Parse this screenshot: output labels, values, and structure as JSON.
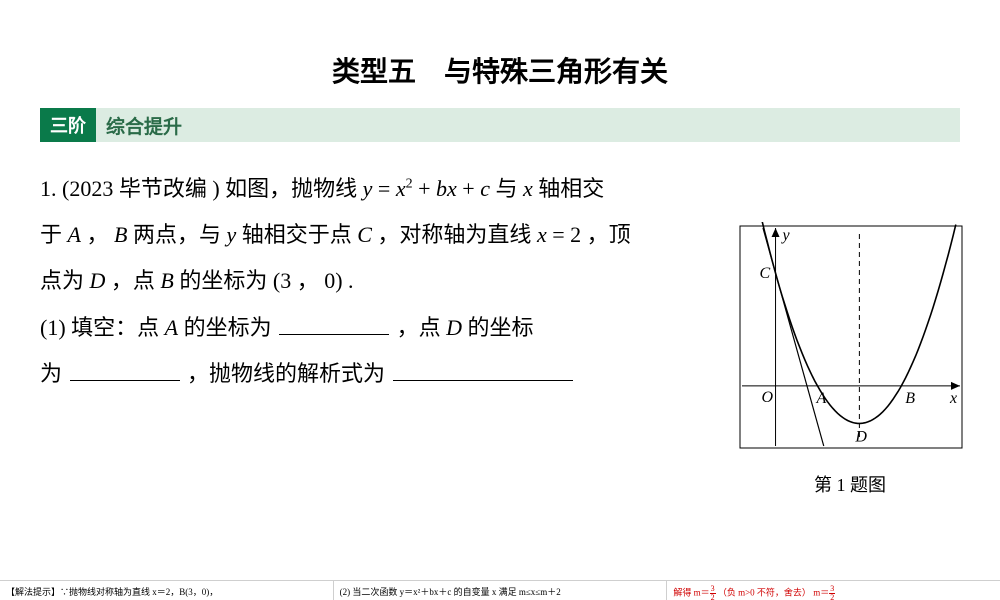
{
  "title": "类型五　与特殊三角形有关",
  "section": {
    "badge": "三阶",
    "label": "综合提升"
  },
  "problem": {
    "line1_a": "1. (2023 毕节改编 ) 如图，抛物线 ",
    "formula1_y": "y",
    "formula1_eq": " = ",
    "formula1_x": "x",
    "formula1_sq": "2",
    "formula1_plus1": " + ",
    "formula1_b": "b",
    "formula1_x2": "x",
    "formula1_plus2": " + ",
    "formula1_c": "c",
    "line1_b": " 与 ",
    "line1_xaxis_x": "x",
    "line1_c": " 轴相交",
    "line2_a": "于 ",
    "pointA": "A",
    "line2_b": " ， ",
    "pointB": "B",
    "line2_c": " 两点，与 ",
    "yaxis": "y",
    "line2_d": " 轴相交于点 ",
    "pointC": "C",
    "line2_e": " ，对称轴为直线 ",
    "sym_x": "x",
    "line2_f": " = 2 ，顶",
    "line3_a": "点为 ",
    "pointD": "D",
    "line3_b": " ，点 ",
    "pointB2": "B",
    "line3_c": " 的坐标为 (3 ， 0) .",
    "line4_a": "(1) 填空：点 ",
    "pointA2": "A",
    "line4_b": " 的坐标为 ",
    "line4_c": " ，点 ",
    "pointD2": "D",
    "line4_d": " 的坐标",
    "line5_a": "为 ",
    "line5_b": " ，抛物线的解析式为 "
  },
  "figure": {
    "caption": "第 1 题图",
    "labels": {
      "y": "y",
      "x": "x",
      "O": "O",
      "A": "A",
      "B": "B",
      "C": "C",
      "D": "D"
    },
    "colors": {
      "stroke": "#000000",
      "bg": "#ffffff"
    },
    "axes": {
      "xrange": [
        -0.8,
        4.4
      ],
      "yrange": [
        -1.6,
        4.2
      ]
    },
    "parabola": {
      "h": 2,
      "k": -1,
      "xA": 1,
      "xB": 3,
      "xsym": 2,
      "yC": 3
    }
  },
  "bottom": {
    "cell1": "【解法提示】∵抛物线对称轴为直线 x＝2，B(3，0)，",
    "cell2": "(2) 当二次函数 y＝x²＋bx＋c 的自变量 x 满足 m≤x≤m＋2",
    "cell3_a": "解得 m＝",
    "cell3_b": "（负 m>0 不符，舍去）",
    "cell3_c": " m＝"
  }
}
